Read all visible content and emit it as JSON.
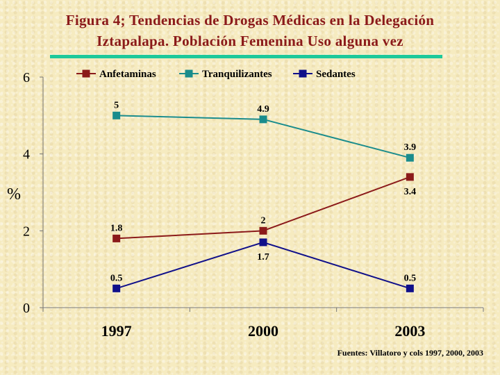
{
  "title_line1": "Figura 4; Tendencias de Drogas Médicas en  la Delegación",
  "title_line2": "Iztapalapa. Población Femenina Uso alguna vez",
  "source": "Fuentes: Villatoro y cols 1997, 2000, 2003",
  "colors": {
    "title": "#8b1a1a",
    "rule": "#1ec99a",
    "Anfetaminas": "#8b1a1a",
    "Tranquilizantes": "#1a8c8c",
    "Sedantes": "#10108a"
  },
  "chart_data": {
    "type": "line",
    "categories": [
      "1997",
      "2000",
      "2003"
    ],
    "ylabel": "%",
    "ylim": [
      0,
      6
    ],
    "yticks": [
      "0",
      "2",
      "4",
      "6"
    ],
    "legend_position": "top",
    "grid": false,
    "series": [
      {
        "name": "Anfetaminas",
        "values": [
          1.8,
          2,
          3.4
        ],
        "labels": [
          "1.8",
          "2",
          "3.4"
        ],
        "label_pos": [
          "above",
          "above",
          "below"
        ]
      },
      {
        "name": "Tranquilizantes",
        "values": [
          5,
          4.9,
          3.9
        ],
        "labels": [
          "5",
          "4.9",
          "3.9"
        ],
        "label_pos": [
          "above",
          "above",
          "above"
        ]
      },
      {
        "name": "Sedantes",
        "values": [
          0.5,
          1.7,
          0.5
        ],
        "labels": [
          "0.5",
          "1.7",
          "0.5"
        ],
        "label_pos": [
          "above",
          "below",
          "above"
        ]
      }
    ]
  }
}
